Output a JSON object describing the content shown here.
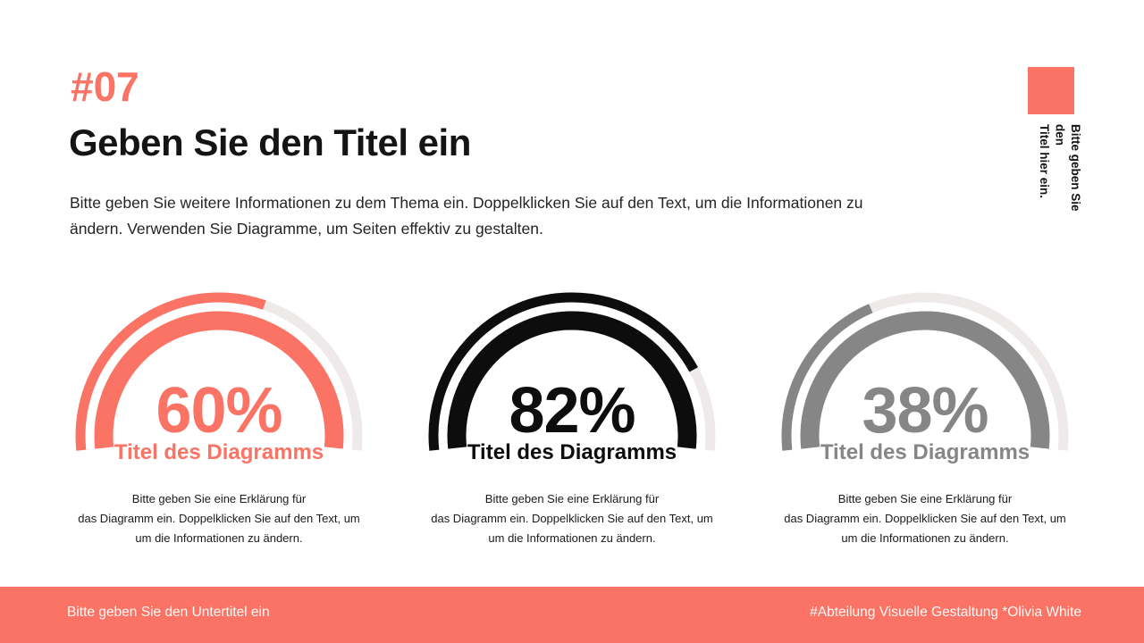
{
  "colors": {
    "accent": "#FB7364",
    "text_dark": "#141414",
    "gauge_track": "#EDEAE9"
  },
  "header": {
    "number": "#07",
    "title": "Geben Sie den Titel ein",
    "description": "Bitte geben Sie weitere Informationen zu dem Thema ein. Doppelklicken Sie auf den Text, um die Informationen zu\nändern. Verwenden Sie Diagramme, um Seiten effektiv zu gestalten."
  },
  "side_note": {
    "text": "Bitte geben Sie\nden\nTitel hier ein."
  },
  "chart_data": [
    {
      "type": "gauge",
      "percent": 60,
      "value_label": "60%",
      "label": "Titel des Diagramms",
      "description": "Bitte geben Sie eine Erklärung für\ndas Diagramm ein. Doppelklicken Sie auf den Text, um\num die Informationen zu ändern.",
      "color": "#FB7364",
      "track_color": "#EDEAE9"
    },
    {
      "type": "gauge",
      "percent": 82,
      "value_label": "82%",
      "label": "Titel des Diagramms",
      "description": "Bitte geben Sie eine Erklärung für\ndas Diagramm ein. Doppelklicken Sie auf den Text, um\num die Informationen zu ändern.",
      "color": "#0D0D0D",
      "track_color": "#EDEAE9"
    },
    {
      "type": "gauge",
      "percent": 38,
      "value_label": "38%",
      "label": "Titel des Diagramms",
      "description": "Bitte geben Sie eine Erklärung für\ndas Diagramm ein. Doppelklicken Sie auf den Text, um\num die Informationen zu ändern.",
      "color": "#868686",
      "track_color": "#EDEAE9"
    }
  ],
  "footer": {
    "subtitle": "Bitte geben Sie den Untertitel ein",
    "credit": "#Abteilung Visuelle Gestaltung *Olivia White"
  }
}
